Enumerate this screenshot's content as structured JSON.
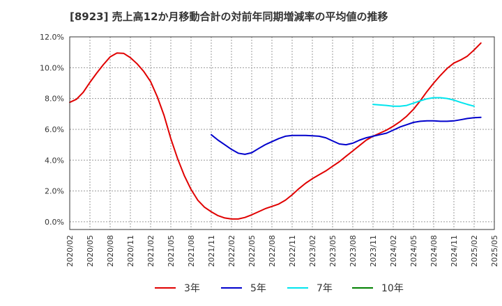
{
  "title": "[8923]  売上高12か月移動合計の対前年同期増減率の平均値の推移",
  "chart_data": {
    "type": "line",
    "title": "[8923]  売上高12か月移動合計の対前年同期増減率の平均値の推移",
    "xlabel": "",
    "ylabel": "",
    "ylim": [
      -0.5,
      12.0
    ],
    "yticks": [
      0,
      2,
      4,
      6,
      8,
      10,
      12
    ],
    "ytick_labels": [
      "0.0%",
      "2.0%",
      "4.0%",
      "6.0%",
      "8.0%",
      "10.0%",
      "12.0%"
    ],
    "x_start": "2020/02",
    "x_end": "2025/05",
    "xtick_labels": [
      "2020/02",
      "2020/05",
      "2020/08",
      "2020/11",
      "2021/02",
      "2021/05",
      "2021/08",
      "2021/11",
      "2022/02",
      "2022/05",
      "2022/08",
      "2022/11",
      "2023/02",
      "2023/05",
      "2023/08",
      "2023/11",
      "2024/02",
      "2024/05",
      "2024/08",
      "2024/11",
      "2025/02",
      "2025/05"
    ],
    "grid": true,
    "legend_position": "bottom",
    "series": [
      {
        "name": "3年",
        "color": "#e00000",
        "start": "2020/02",
        "values": [
          7.75,
          7.95,
          8.4,
          9.05,
          9.65,
          10.2,
          10.7,
          10.95,
          10.93,
          10.65,
          10.25,
          9.75,
          9.1,
          8.1,
          6.9,
          5.4,
          4.1,
          3.0,
          2.1,
          1.4,
          0.95,
          0.65,
          0.4,
          0.25,
          0.18,
          0.18,
          0.28,
          0.45,
          0.65,
          0.85,
          1.0,
          1.15,
          1.4,
          1.75,
          2.15,
          2.5,
          2.8,
          3.05,
          3.3,
          3.6,
          3.9,
          4.25,
          4.6,
          4.95,
          5.3,
          5.55,
          5.75,
          5.95,
          6.2,
          6.5,
          6.85,
          7.3,
          7.85,
          8.45,
          9.0,
          9.5,
          9.95,
          10.3,
          10.5,
          10.75,
          11.15,
          11.6
        ]
      },
      {
        "name": "5年",
        "color": "#0000cc",
        "start": "2021/11",
        "values": [
          5.65,
          5.3,
          5.0,
          4.7,
          4.45,
          4.38,
          4.48,
          4.75,
          5.0,
          5.2,
          5.4,
          5.55,
          5.6,
          5.6,
          5.6,
          5.58,
          5.55,
          5.45,
          5.25,
          5.05,
          5.0,
          5.1,
          5.3,
          5.45,
          5.55,
          5.65,
          5.75,
          5.95,
          6.15,
          6.3,
          6.45,
          6.52,
          6.55,
          6.55,
          6.52,
          6.52,
          6.55,
          6.62,
          6.7,
          6.75,
          6.78
        ]
      },
      {
        "name": "7年",
        "color": "#00e5ee",
        "start": "2023/11",
        "values": [
          7.62,
          7.58,
          7.55,
          7.5,
          7.5,
          7.55,
          7.7,
          7.85,
          7.98,
          8.05,
          8.05,
          8.0,
          7.9,
          7.75,
          7.62,
          7.5
        ]
      },
      {
        "name": "10年",
        "color": "#008000",
        "start": "2020/02",
        "values": []
      }
    ]
  }
}
